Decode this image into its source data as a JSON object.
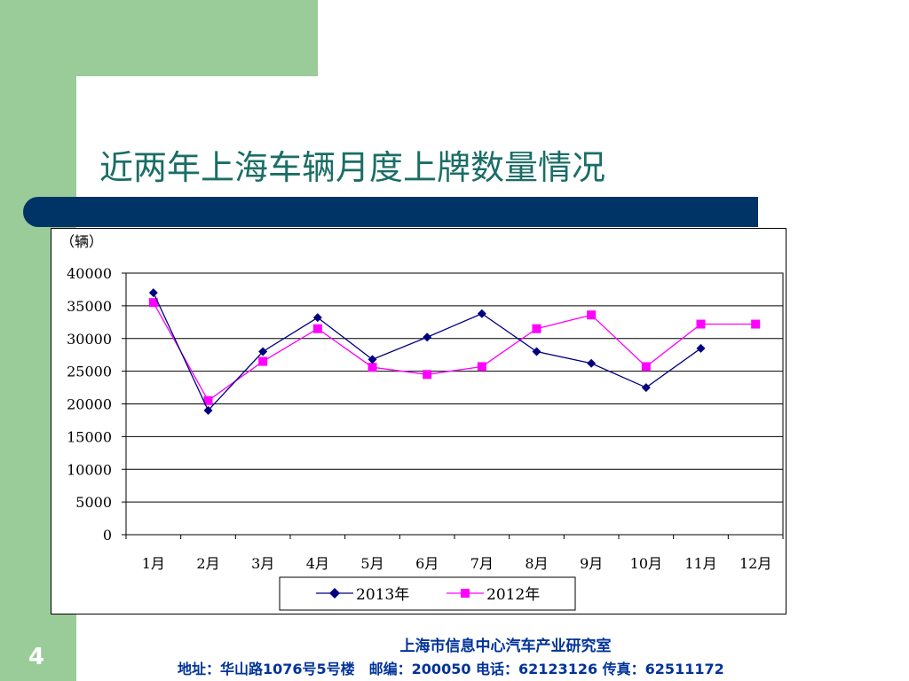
{
  "slide": {
    "title": "近两年上海车辆月度上牌数量情况",
    "page_number": "4",
    "footer_org": "上海市信息中心汽车产业研究室",
    "footer_contact": "地址：华山路1076号5号楼　邮编：200050  电话：62123126  传真：62511172"
  },
  "colors": {
    "green": "#99cc99",
    "bar": "#003366",
    "title": "#1a6e66",
    "series_2013": "#000080",
    "series_2012": "#ff00ff",
    "footer": "#003399"
  },
  "chart_data": {
    "type": "line",
    "unit_label": "（辆）",
    "categories": [
      "1月",
      "2月",
      "3月",
      "4月",
      "5月",
      "6月",
      "7月",
      "8月",
      "9月",
      "10月",
      "11月",
      "12月"
    ],
    "series": [
      {
        "name": "2013年",
        "marker": "diamond",
        "values": [
          37000,
          19000,
          28000,
          33200,
          26800,
          30200,
          33800,
          28000,
          26200,
          22500,
          28500,
          null
        ]
      },
      {
        "name": "2012年",
        "marker": "square",
        "values": [
          35500,
          20500,
          26500,
          31500,
          25600,
          24500,
          25700,
          31500,
          33600,
          25700,
          32200,
          32200
        ]
      }
    ],
    "yticks": [
      "40000",
      "35000",
      "30000",
      "25000",
      "20000",
      "15000",
      "10000",
      "5000",
      "0"
    ],
    "ylim": [
      0,
      40000
    ],
    "grid": true,
    "legend": "bottom"
  }
}
